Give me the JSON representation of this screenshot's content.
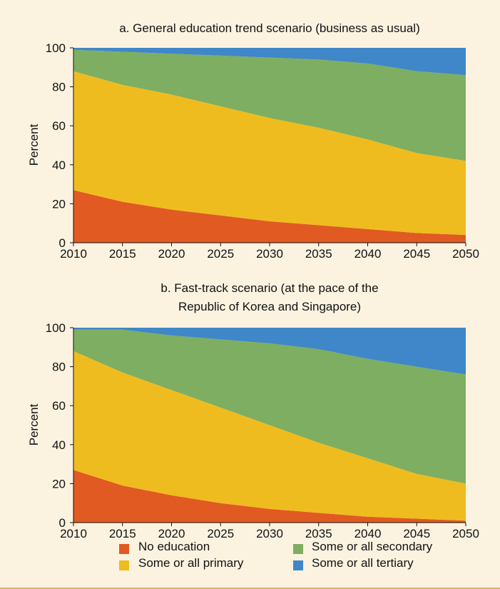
{
  "chart_data": [
    {
      "type": "area",
      "title": "a. General education trend scenario (business as usual)",
      "ylabel": "Percent",
      "xlabel": "",
      "x": [
        2010,
        2015,
        2020,
        2025,
        2030,
        2035,
        2040,
        2045,
        2050
      ],
      "x_tick_labels": [
        "2010",
        "2015",
        "2020",
        "2025",
        "2030",
        "2035",
        "2040",
        "2045",
        "2050"
      ],
      "y_tick_labels": [
        "0",
        "20",
        "40",
        "60",
        "80",
        "100"
      ],
      "ylim": [
        0,
        100
      ],
      "stacked": true,
      "series": [
        {
          "name": "No education",
          "color": "#e15a21",
          "values": [
            27,
            21,
            17,
            14,
            11,
            9,
            7,
            5,
            4
          ]
        },
        {
          "name": "Some or all primary",
          "color": "#efbc1f",
          "values": [
            61,
            60,
            59,
            56,
            53,
            50,
            46,
            41,
            38
          ]
        },
        {
          "name": "Some or all secondary",
          "color": "#7eae61",
          "values": [
            11,
            17,
            21,
            26,
            31,
            35,
            39,
            42,
            44
          ]
        },
        {
          "name": "Some or all tertiary",
          "color": "#3f87c8",
          "values": [
            1,
            2,
            3,
            4,
            5,
            6,
            8,
            12,
            14
          ]
        }
      ]
    },
    {
      "type": "area",
      "title": "b. Fast-track scenario (at the pace of the Republic of Korea and Singapore)",
      "title_lines": [
        "b. Fast-track scenario (at the pace of the",
        "Republic of Korea and Singapore)"
      ],
      "ylabel": "Percent",
      "xlabel": "",
      "x": [
        2010,
        2015,
        2020,
        2025,
        2030,
        2035,
        2040,
        2045,
        2050
      ],
      "x_tick_labels": [
        "2010",
        "2015",
        "2020",
        "2025",
        "2030",
        "2035",
        "2040",
        "2045",
        "2050"
      ],
      "y_tick_labels": [
        "0",
        "20",
        "40",
        "60",
        "80",
        "100"
      ],
      "ylim": [
        0,
        100
      ],
      "stacked": true,
      "series": [
        {
          "name": "No education",
          "color": "#e15a21",
          "values": [
            27,
            19,
            14,
            10,
            7,
            5,
            3,
            2,
            1
          ]
        },
        {
          "name": "Some or all primary",
          "color": "#efbc1f",
          "values": [
            61,
            58,
            54,
            49,
            43,
            36,
            30,
            23,
            19
          ]
        },
        {
          "name": "Some or all secondary",
          "color": "#7eae61",
          "values": [
            11,
            22,
            28,
            35,
            42,
            48,
            51,
            55,
            56
          ]
        },
        {
          "name": "Some or all tertiary",
          "color": "#3f87c8",
          "values": [
            1,
            1,
            4,
            6,
            8,
            11,
            16,
            20,
            24
          ]
        }
      ]
    }
  ],
  "legend": {
    "placement": "bottom",
    "items": [
      {
        "label": "No education",
        "color": "#e15a21"
      },
      {
        "label": "Some or all secondary",
        "color": "#7eae61"
      },
      {
        "label": "Some or all primary",
        "color": "#efbc1f"
      },
      {
        "label": "Some or all tertiary",
        "color": "#3f87c8"
      }
    ]
  }
}
